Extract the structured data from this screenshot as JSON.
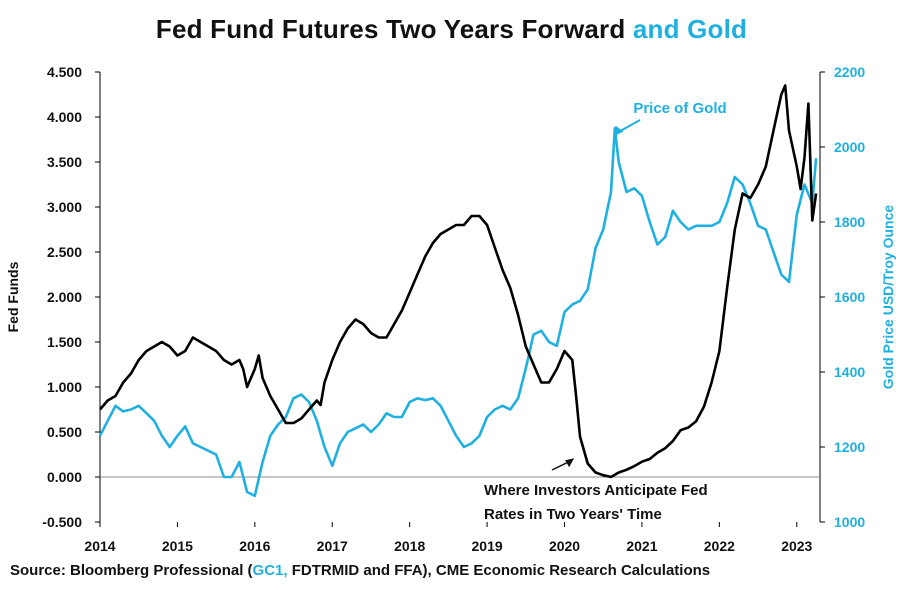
{
  "title": {
    "main": "Fed Fund Futures Two Years Forward",
    "accent": "and Gold"
  },
  "source": {
    "prefix": "Source: Bloomberg Professional  (",
    "highlight": "GC1,",
    "suffix": " FDTRMID and FFA), CME Economic Research Calculations"
  },
  "colors": {
    "fed": "#000000",
    "gold": "#1fb0e0",
    "axis": "#000000"
  },
  "chart_data": {
    "type": "line",
    "title": "Fed Fund Futures Two Years Forward and Gold",
    "xlabel": "",
    "ylabel_left": "Fed Funds",
    "ylabel_right": "Gold Price USD/Troy Ounce",
    "xlim": [
      2014.0,
      2023.3
    ],
    "x_ticks": [
      "2014",
      "2015",
      "2016",
      "2017",
      "2018",
      "2019",
      "2020",
      "2021",
      "2022",
      "2023"
    ],
    "ylim_left": [
      -0.5,
      4.5
    ],
    "y_ticks_left": [
      "-0.500",
      "0.000",
      "0.500",
      "1.000",
      "1.500",
      "2.000",
      "2.500",
      "3.000",
      "3.500",
      "4.000",
      "4.500"
    ],
    "ylim_right": [
      1000,
      2200
    ],
    "y_ticks_right": [
      "1000",
      "1200",
      "1400",
      "1600",
      "1800",
      "2000",
      "2200"
    ],
    "grid": false,
    "annotations": [
      {
        "text": "Price of Gold",
        "x": 2020.62,
        "y_right": 2025,
        "series": "gold"
      },
      {
        "text_lines": [
          "Where Investors Anticipate Fed",
          "Rates in Two Years' Time"
        ],
        "x": 2020.15,
        "y_left": 0.22,
        "series": "fed"
      }
    ],
    "series": [
      {
        "name": "Fed Funds",
        "axis": "left",
        "x": [
          2014.0,
          2014.1,
          2014.2,
          2014.3,
          2014.4,
          2014.5,
          2014.6,
          2014.7,
          2014.8,
          2014.9,
          2015.0,
          2015.1,
          2015.2,
          2015.3,
          2015.4,
          2015.5,
          2015.6,
          2015.7,
          2015.8,
          2015.85,
          2015.9,
          2016.0,
          2016.05,
          2016.1,
          2016.2,
          2016.3,
          2016.4,
          2016.5,
          2016.6,
          2016.7,
          2016.8,
          2016.85,
          2016.9,
          2017.0,
          2017.1,
          2017.2,
          2017.3,
          2017.4,
          2017.5,
          2017.6,
          2017.7,
          2017.8,
          2017.9,
          2018.0,
          2018.1,
          2018.2,
          2018.3,
          2018.4,
          2018.5,
          2018.6,
          2018.7,
          2018.8,
          2018.9,
          2019.0,
          2019.1,
          2019.2,
          2019.3,
          2019.4,
          2019.5,
          2019.6,
          2019.7,
          2019.8,
          2019.9,
          2020.0,
          2020.1,
          2020.15,
          2020.2,
          2020.3,
          2020.4,
          2020.5,
          2020.6,
          2020.7,
          2020.8,
          2020.9,
          2021.0,
          2021.1,
          2021.2,
          2021.3,
          2021.4,
          2021.5,
          2021.6,
          2021.7,
          2021.8,
          2021.9,
          2022.0,
          2022.1,
          2022.2,
          2022.3,
          2022.4,
          2022.5,
          2022.6,
          2022.7,
          2022.8,
          2022.85,
          2022.9,
          2023.0,
          2023.05,
          2023.1,
          2023.15,
          2023.2,
          2023.25
        ],
        "values": [
          0.75,
          0.85,
          0.9,
          1.05,
          1.15,
          1.3,
          1.4,
          1.45,
          1.5,
          1.45,
          1.35,
          1.4,
          1.55,
          1.5,
          1.45,
          1.4,
          1.3,
          1.25,
          1.3,
          1.2,
          1.0,
          1.2,
          1.35,
          1.1,
          0.9,
          0.75,
          0.6,
          0.6,
          0.65,
          0.75,
          0.85,
          0.8,
          1.05,
          1.3,
          1.5,
          1.65,
          1.75,
          1.7,
          1.6,
          1.55,
          1.55,
          1.7,
          1.85,
          2.05,
          2.25,
          2.45,
          2.6,
          2.7,
          2.75,
          2.8,
          2.8,
          2.9,
          2.9,
          2.8,
          2.55,
          2.3,
          2.1,
          1.8,
          1.45,
          1.25,
          1.05,
          1.05,
          1.2,
          1.4,
          1.3,
          0.9,
          0.45,
          0.15,
          0.05,
          0.02,
          0.0,
          0.05,
          0.08,
          0.12,
          0.17,
          0.2,
          0.27,
          0.32,
          0.4,
          0.52,
          0.55,
          0.62,
          0.78,
          1.05,
          1.4,
          2.1,
          2.75,
          3.15,
          3.1,
          3.25,
          3.45,
          3.85,
          4.25,
          4.35,
          3.85,
          3.45,
          3.2,
          3.55,
          4.15,
          2.85,
          3.15
        ]
      },
      {
        "name": "Price of Gold",
        "axis": "right",
        "x": [
          2014.0,
          2014.1,
          2014.2,
          2014.3,
          2014.4,
          2014.5,
          2014.6,
          2014.7,
          2014.8,
          2014.9,
          2015.0,
          2015.1,
          2015.2,
          2015.3,
          2015.4,
          2015.5,
          2015.6,
          2015.7,
          2015.8,
          2015.9,
          2016.0,
          2016.1,
          2016.2,
          2016.3,
          2016.4,
          2016.5,
          2016.6,
          2016.7,
          2016.8,
          2016.9,
          2017.0,
          2017.1,
          2017.2,
          2017.3,
          2017.4,
          2017.5,
          2017.6,
          2017.7,
          2017.8,
          2017.9,
          2018.0,
          2018.1,
          2018.2,
          2018.3,
          2018.4,
          2018.5,
          2018.6,
          2018.7,
          2018.8,
          2018.9,
          2019.0,
          2019.1,
          2019.2,
          2019.3,
          2019.4,
          2019.5,
          2019.6,
          2019.7,
          2019.8,
          2019.9,
          2020.0,
          2020.1,
          2020.2,
          2020.3,
          2020.4,
          2020.5,
          2020.6,
          2020.65,
          2020.7,
          2020.8,
          2020.9,
          2021.0,
          2021.1,
          2021.2,
          2021.3,
          2021.4,
          2021.5,
          2021.6,
          2021.7,
          2021.8,
          2021.9,
          2022.0,
          2022.1,
          2022.2,
          2022.3,
          2022.4,
          2022.5,
          2022.6,
          2022.7,
          2022.8,
          2022.9,
          2023.0,
          2023.1,
          2023.2,
          2023.25
        ],
        "values": [
          1230,
          1270,
          1310,
          1295,
          1300,
          1310,
          1290,
          1270,
          1230,
          1200,
          1230,
          1255,
          1210,
          1200,
          1190,
          1180,
          1120,
          1120,
          1160,
          1080,
          1070,
          1160,
          1230,
          1260,
          1280,
          1330,
          1340,
          1320,
          1270,
          1200,
          1150,
          1210,
          1240,
          1250,
          1260,
          1240,
          1260,
          1290,
          1280,
          1280,
          1320,
          1330,
          1325,
          1330,
          1310,
          1270,
          1230,
          1200,
          1210,
          1230,
          1280,
          1300,
          1310,
          1300,
          1330,
          1410,
          1500,
          1510,
          1480,
          1470,
          1560,
          1580,
          1590,
          1620,
          1730,
          1780,
          1880,
          2050,
          1960,
          1880,
          1890,
          1870,
          1800,
          1740,
          1760,
          1830,
          1800,
          1780,
          1790,
          1790,
          1790,
          1800,
          1850,
          1920,
          1900,
          1850,
          1790,
          1780,
          1720,
          1660,
          1640,
          1820,
          1900,
          1850,
          1970
        ]
      }
    ]
  }
}
